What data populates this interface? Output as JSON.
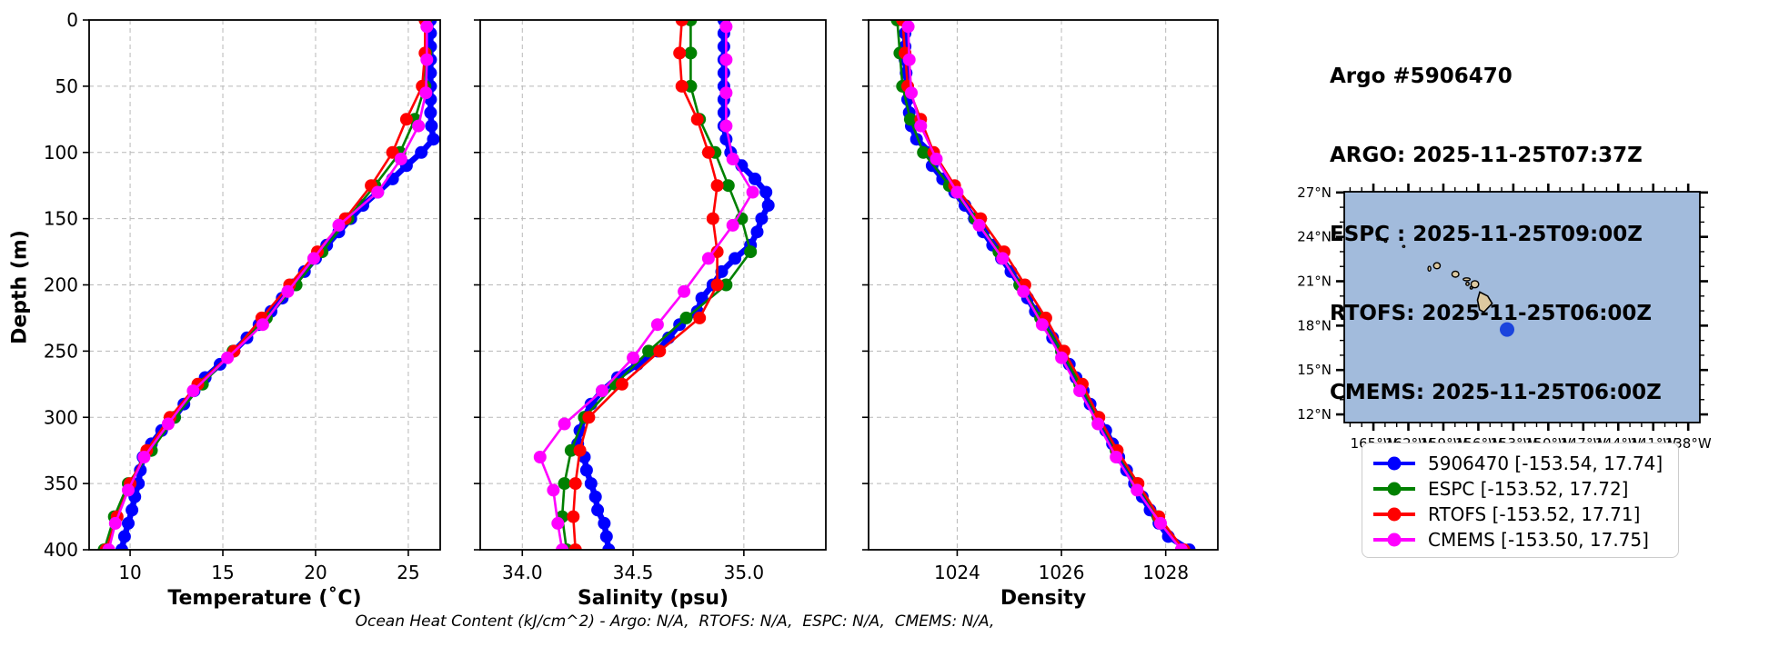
{
  "header": {
    "title": "Argo #5906470",
    "lines": [
      "ARGO: 2025-11-25T07:37Z",
      "ESPC : 2025-11-25T09:00Z",
      "RTOFS: 2025-11-25T06:00Z",
      "CMEMS: 2025-11-25T06:00Z"
    ]
  },
  "footer": {
    "ohc_note": "Ocean Heat Content (kJ/cm^2) - Argo: N/A,  RTOFS: N/A,  ESPC: N/A,  CMEMS: N/A,"
  },
  "colors": {
    "argo": "#0000ff",
    "espc": "#008000",
    "rtofs": "#ff0000",
    "cmems": "#ff00ff",
    "grid": "#b8b8b8",
    "ocean": "#a2bbdc",
    "land": "#ddc9a0",
    "map_marker": "#1b44dd"
  },
  "legend": {
    "entries": [
      {
        "label": "5906470 [-153.54, 17.74]",
        "color": "#0000ff"
      },
      {
        "label": "ESPC [-153.52, 17.72]",
        "color": "#008000"
      },
      {
        "label": "RTOFS [-153.52, 17.71]",
        "color": "#ff0000"
      },
      {
        "label": "CMEMS [-153.50, 17.75]",
        "color": "#ff00ff"
      }
    ]
  },
  "map": {
    "lat_tick_labels": [
      "27°N",
      "24°N",
      "21°N",
      "18°N",
      "15°N",
      "12°N"
    ],
    "lat_ticks": [
      27,
      24,
      21,
      18,
      15,
      12
    ],
    "lon_tick_labels": [
      "165°W",
      "162°W",
      "159°W",
      "156°W",
      "153°W",
      "150°W",
      "147°W",
      "144°W",
      "141°W",
      "138°W"
    ],
    "lon_ticks": [
      165,
      162,
      159,
      156,
      153,
      150,
      147,
      144,
      141,
      138
    ],
    "lon_w_range": [
      167.5,
      137.0
    ],
    "lat_range": [
      27.05,
      11.45
    ],
    "float_position": {
      "lon": -153.54,
      "lat": 17.74
    },
    "islands": [
      {
        "name": "kauai",
        "type": "ellipse",
        "lon_w": 159.55,
        "lat": 22.05,
        "rx": 0.28,
        "ry": 0.2
      },
      {
        "name": "niihau",
        "type": "ellipse",
        "lon_w": 160.2,
        "lat": 21.85,
        "rx": 0.12,
        "ry": 0.16
      },
      {
        "name": "oahu",
        "type": "ellipse",
        "lon_w": 157.97,
        "lat": 21.48,
        "rx": 0.3,
        "ry": 0.2
      },
      {
        "name": "molokai",
        "type": "ellipse",
        "lon_w": 157.0,
        "lat": 21.13,
        "rx": 0.3,
        "ry": 0.1
      },
      {
        "name": "lanai",
        "type": "ellipse",
        "lon_w": 156.93,
        "lat": 20.82,
        "rx": 0.13,
        "ry": 0.11
      },
      {
        "name": "kahoolawe",
        "type": "ellipse",
        "lon_w": 156.6,
        "lat": 20.55,
        "rx": 0.1,
        "ry": 0.08
      },
      {
        "name": "maui",
        "type": "ellipse",
        "lon_w": 156.3,
        "lat": 20.8,
        "rx": 0.33,
        "ry": 0.24
      },
      {
        "name": "hawaii",
        "type": "polygon",
        "points_lonw_lat": [
          [
            155.88,
            20.27
          ],
          [
            155.2,
            20.0
          ],
          [
            154.82,
            19.5
          ],
          [
            155.53,
            18.91
          ],
          [
            155.9,
            19.08
          ],
          [
            156.07,
            19.73
          ]
        ]
      },
      {
        "name": "speck-1",
        "type": "ellipse",
        "lon_w": 164.6,
        "lat": 23.85,
        "rx": 0.1,
        "ry": 0.07
      },
      {
        "name": "speck-2",
        "type": "ellipse",
        "lon_w": 163.95,
        "lat": 23.7,
        "rx": 0.06,
        "ry": 0.05
      },
      {
        "name": "speck-3",
        "type": "ellipse",
        "lon_w": 162.4,
        "lat": 23.35,
        "rx": 0.07,
        "ry": 0.05
      }
    ]
  },
  "chart_data": [
    {
      "type": "line",
      "xlabel": "Temperature (˚C)",
      "ylabel": "Depth (m)",
      "xlim": [
        7.79,
        26.72
      ],
      "ylim": [
        400,
        0
      ],
      "grid": true,
      "xticks": [
        10,
        15,
        20,
        25
      ],
      "xtick_labels": [
        "10",
        "15",
        "20",
        "25"
      ],
      "yticks": [
        0,
        50,
        100,
        150,
        200,
        250,
        300,
        350,
        400
      ],
      "ytick_labels": [
        "0",
        "50",
        "100",
        "150",
        "200",
        "250",
        "300",
        "350",
        "400"
      ],
      "series": [
        {
          "name": "5906470",
          "color": "#0000ff",
          "line_width": 6.5,
          "marker_size": 7,
          "depth": [
            0,
            10,
            20,
            30,
            40,
            50,
            60,
            70,
            80,
            90,
            100,
            110,
            120,
            130,
            140,
            150,
            160,
            170,
            180,
            190,
            200,
            210,
            220,
            230,
            240,
            250,
            260,
            270,
            280,
            290,
            300,
            310,
            320,
            330,
            340,
            350,
            360,
            370,
            380,
            390,
            400
          ],
          "values": [
            26.2,
            26.2,
            26.2,
            26.2,
            26.2,
            26.2,
            26.2,
            26.2,
            26.25,
            26.35,
            25.7,
            24.9,
            24.15,
            23.35,
            22.55,
            21.9,
            21.25,
            20.6,
            20.0,
            19.4,
            18.8,
            18.2,
            17.6,
            16.95,
            16.3,
            15.6,
            14.85,
            14.05,
            13.45,
            12.9,
            12.4,
            11.7,
            11.15,
            10.7,
            10.55,
            10.45,
            10.25,
            10.1,
            9.9,
            9.7,
            9.55
          ]
        },
        {
          "name": "ESPC",
          "color": "#008000",
          "line_width": 2.6,
          "marker_size": 7,
          "depth": [
            0,
            25,
            50,
            75,
            100,
            125,
            150,
            175,
            200,
            225,
            250,
            275,
            300,
            325,
            350,
            375,
            400
          ],
          "values": [
            25.95,
            25.95,
            25.9,
            25.35,
            24.55,
            23.2,
            21.75,
            20.35,
            18.95,
            17.35,
            15.55,
            13.9,
            12.4,
            11.15,
            9.9,
            9.15,
            8.6
          ]
        },
        {
          "name": "RTOFS",
          "color": "#ff0000",
          "line_width": 2.6,
          "marker_size": 7,
          "depth": [
            0,
            25,
            50,
            75,
            100,
            125,
            150,
            175,
            200,
            225,
            250,
            275,
            300,
            325,
            350,
            375,
            400
          ],
          "values": [
            25.9,
            25.9,
            25.75,
            24.9,
            24.15,
            23.0,
            21.6,
            20.1,
            18.6,
            17.1,
            15.6,
            13.65,
            12.15,
            10.9,
            10.0,
            9.3,
            8.7
          ]
        },
        {
          "name": "CMEMS",
          "color": "#ff00ff",
          "line_width": 2.6,
          "marker_size": 7,
          "depth": [
            5,
            30,
            55,
            80,
            105,
            130,
            155,
            180,
            205,
            230,
            255,
            280,
            305,
            330,
            355,
            380,
            400
          ],
          "values": [
            26.0,
            26.0,
            25.95,
            25.55,
            24.6,
            23.35,
            21.25,
            19.9,
            18.5,
            17.15,
            15.25,
            13.4,
            12.05,
            10.75,
            9.9,
            9.2,
            8.85
          ]
        }
      ]
    },
    {
      "type": "line",
      "xlabel": "Salinity (psu)",
      "ylabel": "Depth (m)",
      "xlim": [
        33.81,
        35.37
      ],
      "ylim": [
        400,
        0
      ],
      "grid": true,
      "xticks": [
        34.0,
        34.5,
        35.0
      ],
      "xtick_labels": [
        "34.0",
        "34.5",
        "35.0"
      ],
      "yticks": [
        0,
        50,
        100,
        150,
        200,
        250,
        300,
        350,
        400
      ],
      "ytick_labels": [],
      "series": [
        {
          "name": "5906470",
          "color": "#0000ff",
          "line_width": 6.5,
          "marker_size": 7,
          "depth": [
            0,
            10,
            20,
            30,
            40,
            50,
            60,
            70,
            80,
            90,
            100,
            110,
            120,
            130,
            140,
            150,
            160,
            170,
            180,
            190,
            200,
            210,
            220,
            230,
            240,
            250,
            260,
            270,
            280,
            290,
            300,
            310,
            320,
            330,
            340,
            350,
            360,
            370,
            380,
            390,
            400
          ],
          "values": [
            34.91,
            34.91,
            34.91,
            34.91,
            34.91,
            34.91,
            34.91,
            34.91,
            34.91,
            34.92,
            34.94,
            34.99,
            35.05,
            35.1,
            35.11,
            35.08,
            35.06,
            35.03,
            34.96,
            34.9,
            34.86,
            34.81,
            34.79,
            34.71,
            34.66,
            34.61,
            34.52,
            34.43,
            34.36,
            34.31,
            34.28,
            34.26,
            34.25,
            34.28,
            34.29,
            34.31,
            34.33,
            34.34,
            34.37,
            34.38,
            34.39
          ]
        },
        {
          "name": "ESPC",
          "color": "#008000",
          "line_width": 2.6,
          "marker_size": 7,
          "depth": [
            0,
            25,
            50,
            75,
            100,
            125,
            150,
            175,
            200,
            225,
            250,
            275,
            300,
            325,
            350,
            375,
            400
          ],
          "values": [
            34.76,
            34.76,
            34.76,
            34.8,
            34.87,
            34.93,
            34.99,
            35.03,
            34.92,
            34.74,
            34.57,
            34.42,
            34.28,
            34.22,
            34.19,
            34.18,
            34.2
          ]
        },
        {
          "name": "RTOFS",
          "color": "#ff0000",
          "line_width": 2.6,
          "marker_size": 7,
          "depth": [
            0,
            25,
            50,
            75,
            100,
            125,
            150,
            175,
            200,
            225,
            250,
            275,
            300,
            325,
            350,
            375,
            400
          ],
          "values": [
            34.72,
            34.71,
            34.72,
            34.79,
            34.84,
            34.88,
            34.86,
            34.88,
            34.88,
            34.8,
            34.62,
            34.45,
            34.3,
            34.26,
            34.24,
            34.23,
            34.24
          ]
        },
        {
          "name": "CMEMS",
          "color": "#ff00ff",
          "line_width": 2.6,
          "marker_size": 7,
          "depth": [
            5,
            30,
            55,
            80,
            105,
            130,
            155,
            180,
            205,
            230,
            255,
            280,
            305,
            330,
            355,
            380,
            400
          ],
          "values": [
            34.92,
            34.92,
            34.92,
            34.92,
            34.95,
            35.04,
            34.95,
            34.84,
            34.73,
            34.61,
            34.5,
            34.36,
            34.19,
            34.08,
            34.14,
            34.16,
            34.18
          ]
        }
      ]
    },
    {
      "type": "line",
      "xlabel": "Density",
      "ylabel": "Depth (m)",
      "xlim": [
        1022.3,
        1029.0
      ],
      "ylim": [
        400,
        0
      ],
      "grid": true,
      "xticks": [
        1024,
        1026,
        1028
      ],
      "xtick_labels": [
        "1024",
        "1026",
        "1028"
      ],
      "yticks": [
        0,
        50,
        100,
        150,
        200,
        250,
        300,
        350,
        400
      ],
      "ytick_labels": [],
      "series": [
        {
          "name": "5906470",
          "color": "#0000ff",
          "line_width": 6.5,
          "marker_size": 7,
          "depth": [
            0,
            10,
            20,
            30,
            40,
            50,
            60,
            70,
            80,
            90,
            100,
            110,
            120,
            130,
            140,
            150,
            160,
            170,
            180,
            190,
            200,
            210,
            220,
            230,
            240,
            250,
            260,
            270,
            280,
            290,
            300,
            310,
            320,
            330,
            340,
            350,
            360,
            370,
            380,
            390,
            400
          ],
          "values": [
            1023.0,
            1023.0,
            1023.0,
            1023.0,
            1023.02,
            1023.03,
            1023.05,
            1023.08,
            1023.12,
            1023.22,
            1023.48,
            1023.52,
            1023.72,
            1023.95,
            1024.15,
            1024.33,
            1024.5,
            1024.68,
            1024.85,
            1025.03,
            1025.2,
            1025.35,
            1025.5,
            1025.67,
            1025.83,
            1026.0,
            1026.15,
            1026.28,
            1026.42,
            1026.55,
            1026.7,
            1026.85,
            1026.98,
            1027.1,
            1027.25,
            1027.4,
            1027.55,
            1027.7,
            1027.87,
            1028.05,
            1028.45
          ]
        },
        {
          "name": "ESPC",
          "color": "#008000",
          "line_width": 2.6,
          "marker_size": 7,
          "depth": [
            0,
            25,
            50,
            75,
            100,
            125,
            150,
            175,
            200,
            225,
            250,
            275,
            300,
            325,
            350,
            375,
            400
          ],
          "values": [
            1022.85,
            1022.9,
            1022.95,
            1023.1,
            1023.35,
            1023.85,
            1024.35,
            1024.8,
            1025.2,
            1025.6,
            1026.0,
            1026.35,
            1026.7,
            1027.05,
            1027.45,
            1027.85,
            1028.3
          ]
        },
        {
          "name": "RTOFS",
          "color": "#ff0000",
          "line_width": 2.6,
          "marker_size": 7,
          "depth": [
            0,
            25,
            50,
            75,
            100,
            125,
            150,
            175,
            200,
            225,
            250,
            275,
            300,
            325,
            350,
            375,
            400
          ],
          "values": [
            1022.95,
            1023.0,
            1023.05,
            1023.3,
            1023.55,
            1023.95,
            1024.45,
            1024.9,
            1025.3,
            1025.7,
            1026.05,
            1026.4,
            1026.72,
            1027.07,
            1027.47,
            1027.87,
            1028.35
          ]
        },
        {
          "name": "CMEMS",
          "color": "#ff00ff",
          "line_width": 2.6,
          "marker_size": 7,
          "depth": [
            5,
            30,
            55,
            80,
            105,
            130,
            155,
            180,
            205,
            230,
            255,
            280,
            305,
            330,
            355,
            380,
            400
          ],
          "values": [
            1023.06,
            1023.08,
            1023.12,
            1023.3,
            1023.6,
            1024.0,
            1024.42,
            1024.87,
            1025.27,
            1025.63,
            1026.0,
            1026.35,
            1026.7,
            1027.05,
            1027.45,
            1027.9,
            1028.3
          ]
        }
      ]
    }
  ]
}
